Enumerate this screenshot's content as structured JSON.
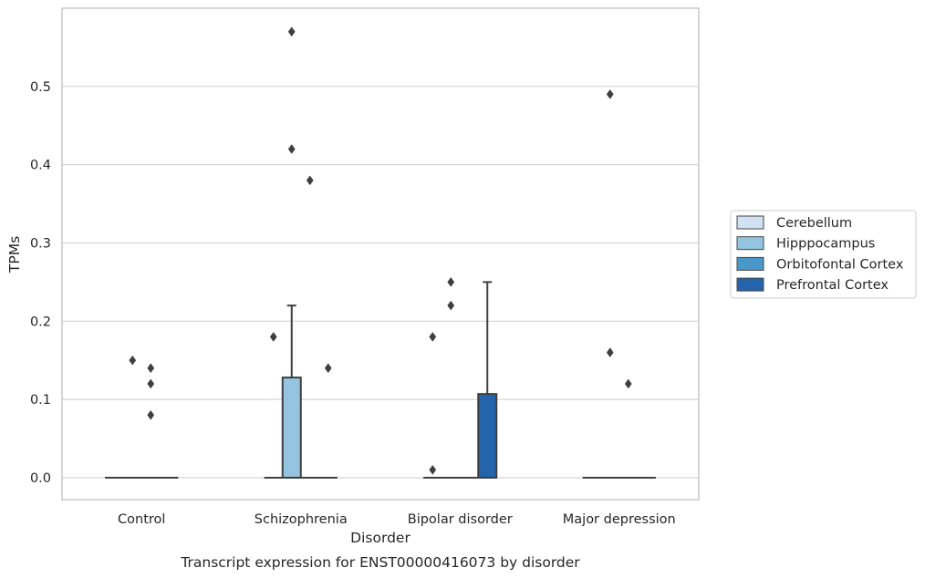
{
  "chart_data": {
    "type": "box",
    "caption": "Transcript expression for ENST00000416073 by disorder",
    "xlabel": "Disorder",
    "ylabel": "TPMs",
    "ylim": [
      -0.028,
      0.6
    ],
    "yticks": [
      "0.0",
      "0.1",
      "0.2",
      "0.3",
      "0.4",
      "0.5"
    ],
    "grid": "horizontal",
    "legend_position": "right",
    "categories": [
      "Control",
      "Schizophrenia",
      "Bipolar disorder",
      "Major depression"
    ],
    "series": [
      {
        "name": "Cerebellum",
        "color": "#d0e1f2"
      },
      {
        "name": "Hipppocampus",
        "color": "#94c4df"
      },
      {
        "name": "Orbitofontal Cortex",
        "color": "#4a98c9"
      },
      {
        "name": "Prefrontal Cortex",
        "color": "#2464ab"
      }
    ],
    "boxes": [
      {
        "category": "Control",
        "series": "Cerebellum",
        "q1": 0,
        "median": 0,
        "q3": 0,
        "whisker_low": 0,
        "whisker_high": 0,
        "outliers": []
      },
      {
        "category": "Control",
        "series": "Hipppocampus",
        "q1": 0,
        "median": 0,
        "q3": 0,
        "whisker_low": 0,
        "whisker_high": 0,
        "outliers": [
          0.15
        ]
      },
      {
        "category": "Control",
        "series": "Orbitofontal Cortex",
        "q1": 0,
        "median": 0,
        "q3": 0,
        "whisker_low": 0,
        "whisker_high": 0,
        "outliers": [
          0.14,
          0.12,
          0.08
        ]
      },
      {
        "category": "Control",
        "series": "Prefrontal Cortex",
        "q1": 0,
        "median": 0,
        "q3": 0,
        "whisker_low": 0,
        "whisker_high": 0,
        "outliers": []
      },
      {
        "category": "Schizophrenia",
        "series": "Cerebellum",
        "q1": 0,
        "median": 0,
        "q3": 0,
        "whisker_low": 0,
        "whisker_high": 0,
        "outliers": [
          0.18
        ]
      },
      {
        "category": "Schizophrenia",
        "series": "Hipppocampus",
        "q1": 0,
        "median": 0,
        "q3": 0.128,
        "whisker_low": 0,
        "whisker_high": 0.22,
        "outliers": [
          0.57,
          0.42
        ]
      },
      {
        "category": "Schizophrenia",
        "series": "Orbitofontal Cortex",
        "q1": 0,
        "median": 0,
        "q3": 0,
        "whisker_low": 0,
        "whisker_high": 0,
        "outliers": [
          0.38
        ]
      },
      {
        "category": "Schizophrenia",
        "series": "Prefrontal Cortex",
        "q1": 0,
        "median": 0,
        "q3": 0,
        "whisker_low": 0,
        "whisker_high": 0,
        "outliers": [
          0.14
        ]
      },
      {
        "category": "Bipolar disorder",
        "series": "Cerebellum",
        "q1": 0,
        "median": 0,
        "q3": 0,
        "whisker_low": 0,
        "whisker_high": 0,
        "outliers": [
          0.18,
          0.01
        ]
      },
      {
        "category": "Bipolar disorder",
        "series": "Hipppocampus",
        "q1": 0,
        "median": 0,
        "q3": 0,
        "whisker_low": 0,
        "whisker_high": 0,
        "outliers": [
          0.25,
          0.22
        ]
      },
      {
        "category": "Bipolar disorder",
        "series": "Orbitofontal Cortex",
        "q1": 0,
        "median": 0,
        "q3": 0,
        "whisker_low": 0,
        "whisker_high": 0,
        "outliers": []
      },
      {
        "category": "Bipolar disorder",
        "series": "Prefrontal Cortex",
        "q1": 0,
        "median": 0,
        "q3": 0.107,
        "whisker_low": 0,
        "whisker_high": 0.25,
        "outliers": []
      },
      {
        "category": "Major depression",
        "series": "Cerebellum",
        "q1": 0,
        "median": 0,
        "q3": 0,
        "whisker_low": 0,
        "whisker_high": 0,
        "outliers": []
      },
      {
        "category": "Major depression",
        "series": "Hipppocampus",
        "q1": 0,
        "median": 0,
        "q3": 0,
        "whisker_low": 0,
        "whisker_high": 0,
        "outliers": [
          0.49,
          0.16
        ]
      },
      {
        "category": "Major depression",
        "series": "Orbitofontal Cortex",
        "q1": 0,
        "median": 0,
        "q3": 0,
        "whisker_low": 0,
        "whisker_high": 0,
        "outliers": [
          0.12
        ]
      },
      {
        "category": "Major depression",
        "series": "Prefrontal Cortex",
        "q1": 0,
        "median": 0,
        "q3": 0,
        "whisker_low": 0,
        "whisker_high": 0,
        "outliers": []
      }
    ]
  },
  "colors": {
    "grid": "#d5d5d5",
    "frame": "#c8c8c8",
    "box_edge": "#3f3f3f",
    "text": "#262626"
  }
}
